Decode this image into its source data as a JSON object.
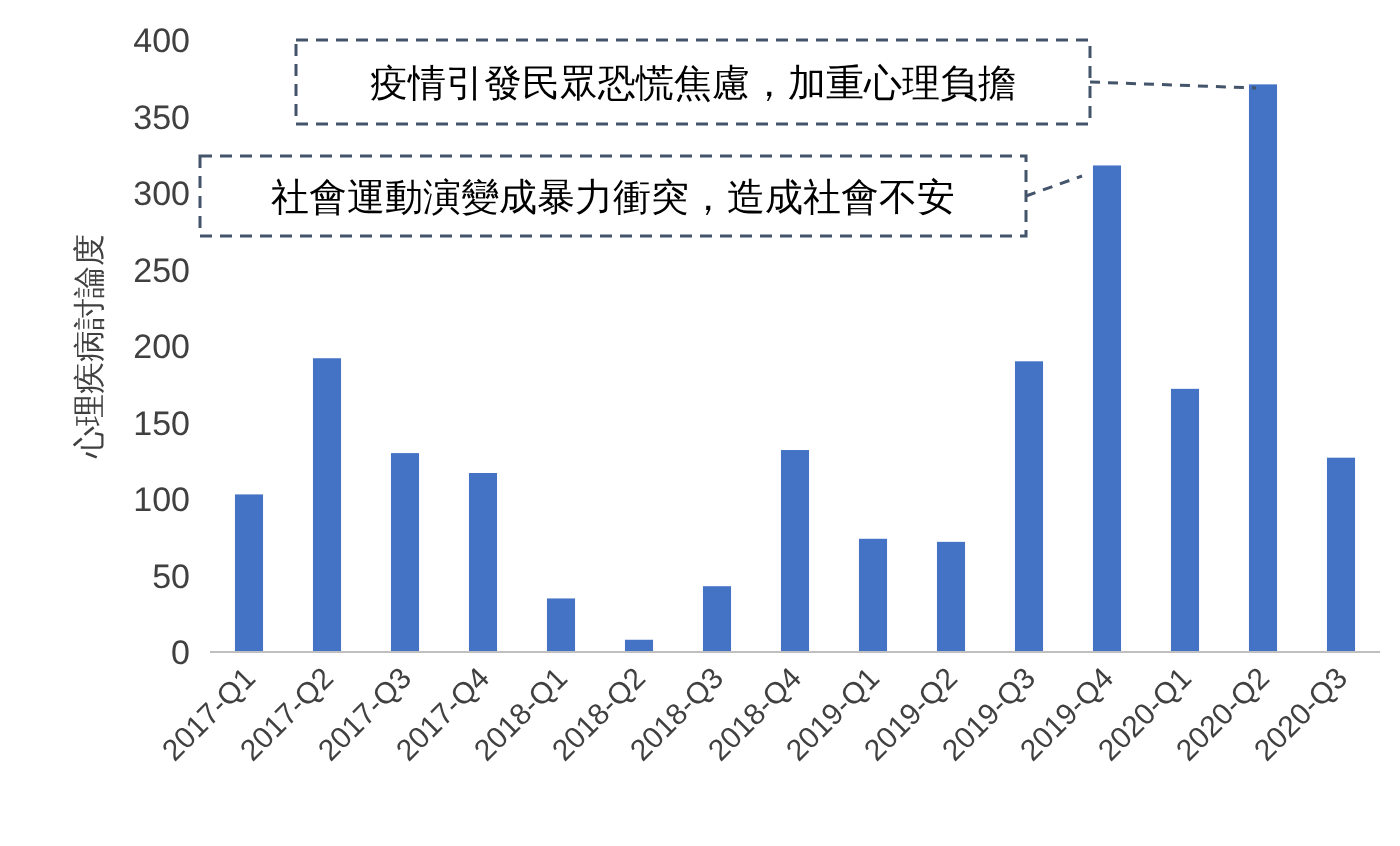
{
  "chart_data": {
    "type": "bar",
    "ylabel": "心理疾病討論度",
    "categories": [
      "2017-Q1",
      "2017-Q2",
      "2017-Q3",
      "2017-Q4",
      "2018-Q1",
      "2018-Q2",
      "2018-Q3",
      "2018-Q4",
      "2019-Q1",
      "2019-Q2",
      "2019-Q3",
      "2019-Q4",
      "2020-Q1",
      "2020-Q2",
      "2020-Q3"
    ],
    "values": [
      103,
      192,
      130,
      117,
      35,
      8,
      43,
      132,
      74,
      72,
      190,
      318,
      172,
      371,
      127
    ],
    "color": "#4472c4",
    "ylim": [
      0,
      400
    ],
    "yticks": [
      0,
      50,
      100,
      150,
      200,
      250,
      300,
      350,
      400
    ],
    "grid": false,
    "annotations": [
      "疫情引發民眾恐慌焦慮，加重心理負擔",
      "社會運動演變成暴力衝突，造成社會不安"
    ]
  }
}
